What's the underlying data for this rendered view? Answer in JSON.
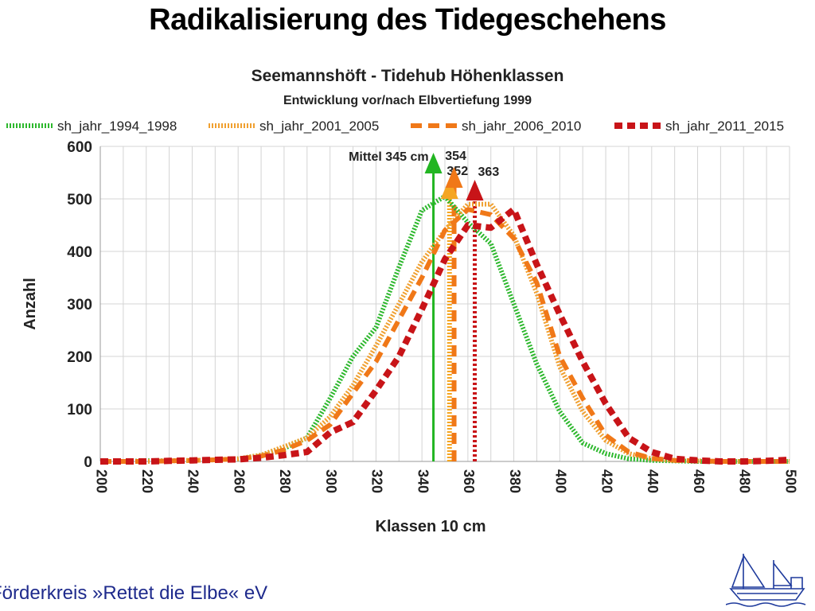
{
  "page": {
    "title": "Radikalisierung des Tidegeschehens",
    "footer": "Förderkreis »Rettet die Elbe« eV"
  },
  "chart_data": {
    "type": "line",
    "title": "Seemannshöft - Tidehub Höhenklassen",
    "subtitle": "Entwicklung vor/nach Elbvertiefung 1999",
    "xlabel": "Klassen 10 cm",
    "ylabel": "Anzahl",
    "xlim": [
      200,
      500
    ],
    "ylim": [
      0,
      600
    ],
    "xticks": [
      200,
      220,
      240,
      260,
      280,
      300,
      320,
      340,
      360,
      380,
      400,
      420,
      440,
      460,
      480,
      500
    ],
    "yticks": [
      0,
      100,
      200,
      300,
      400,
      500,
      600
    ],
    "grid": true,
    "legend_position": "top",
    "x": [
      200,
      210,
      220,
      230,
      240,
      250,
      260,
      270,
      280,
      290,
      300,
      310,
      320,
      330,
      340,
      350,
      360,
      370,
      380,
      390,
      400,
      410,
      420,
      430,
      440,
      450,
      460,
      470,
      480,
      490,
      500
    ],
    "series": [
      {
        "name": "sh_jahr_1994_1998",
        "color": "#2db82d",
        "style": "dotted",
        "values": [
          0,
          0,
          1,
          1,
          2,
          3,
          5,
          12,
          25,
          45,
          120,
          200,
          255,
          370,
          478,
          505,
          455,
          415,
          300,
          185,
          95,
          35,
          15,
          5,
          2,
          1,
          0,
          0,
          0,
          0,
          0
        ]
      },
      {
        "name": "sh_jahr_2001_2005",
        "color": "#f0a030",
        "style": "dotted",
        "values": [
          0,
          0,
          0,
          1,
          2,
          3,
          5,
          12,
          28,
          45,
          85,
          145,
          220,
          300,
          380,
          440,
          490,
          490,
          430,
          320,
          180,
          95,
          40,
          15,
          5,
          2,
          1,
          0,
          0,
          0,
          0
        ]
      },
      {
        "name": "sh_jahr_2006_2010",
        "color": "#f07818",
        "style": "dashed",
        "values": [
          0,
          0,
          0,
          1,
          2,
          3,
          5,
          10,
          22,
          40,
          70,
          130,
          190,
          270,
          350,
          440,
          480,
          470,
          425,
          340,
          200,
          120,
          50,
          18,
          6,
          2,
          1,
          0,
          0,
          0,
          0
        ]
      },
      {
        "name": "sh_jahr_2011_2015",
        "color": "#c81418",
        "style": "dashed-heavy",
        "values": [
          0,
          0,
          0,
          1,
          2,
          3,
          4,
          7,
          12,
          18,
          55,
          75,
          135,
          200,
          290,
          385,
          450,
          445,
          480,
          375,
          280,
          190,
          110,
          45,
          18,
          5,
          2,
          0,
          0,
          1,
          3
        ]
      }
    ],
    "means": [
      {
        "value": 345,
        "label": "Mittel 345 cm",
        "color": "#22b522",
        "style": "solid"
      },
      {
        "value": 352,
        "label": "352",
        "color": "#f5a623",
        "style": "dotted"
      },
      {
        "value": 354,
        "label": "354",
        "color": "#f07818",
        "style": "dashed"
      },
      {
        "value": 363,
        "label": "363",
        "color": "#c81418",
        "style": "dotted-heavy"
      }
    ]
  }
}
